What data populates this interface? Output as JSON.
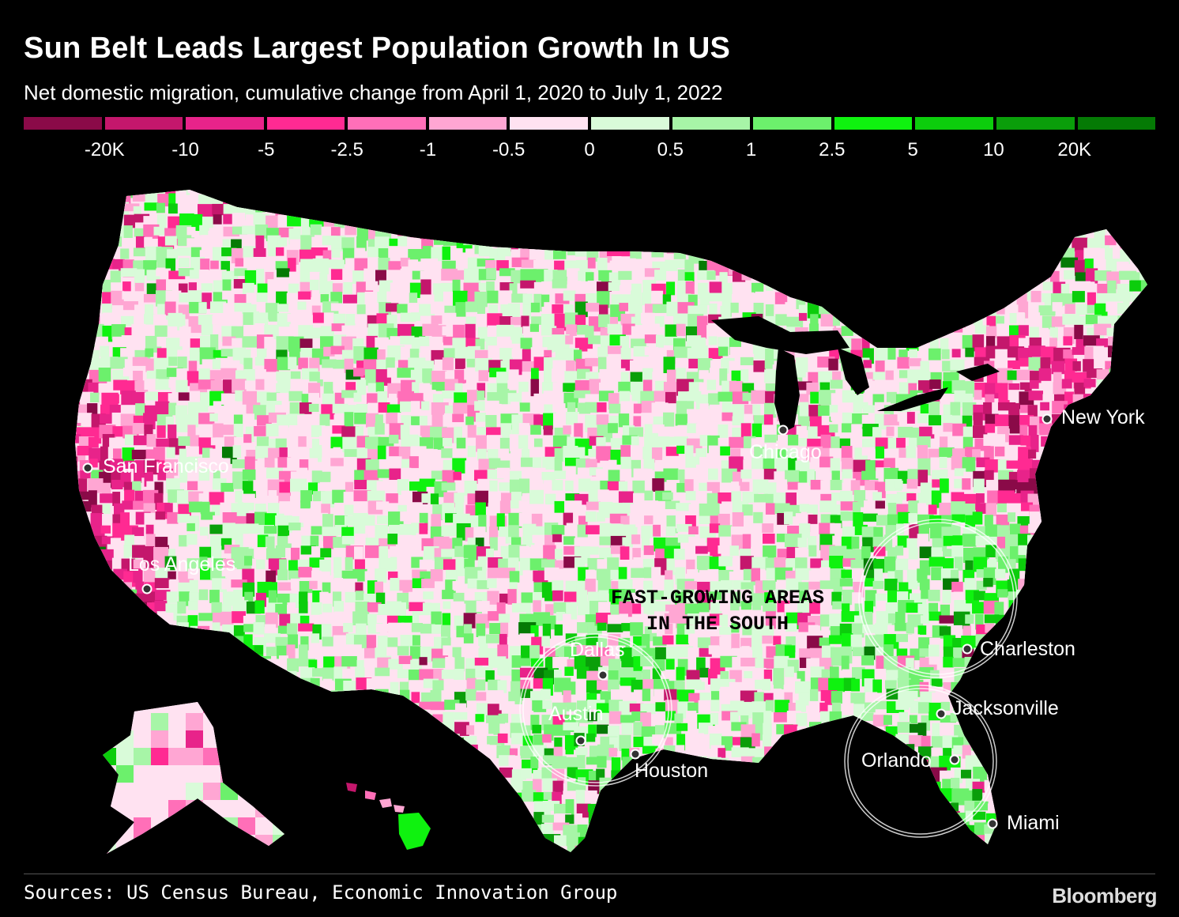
{
  "title": "Sun Belt Leads Largest Population Growth In US",
  "subtitle": "Net domestic migration, cumulative change from April 1, 2020 to July 1, 2022",
  "legend": {
    "colors": [
      "#8a0a48",
      "#c4176c",
      "#e8238a",
      "#ff2a92",
      "#ff6fb8",
      "#ffa6d3",
      "#ffe2f1",
      "#d9fbd9",
      "#a7f5a7",
      "#6cf06c",
      "#0ff20f",
      "#0ccd0c",
      "#0a9e0a",
      "#057a05"
    ],
    "labels": [
      "-20K",
      "-10",
      "-5",
      "-2.5",
      "-1",
      "-0.5",
      "0",
      "0.5",
      "1",
      "2.5",
      "5",
      "10",
      "20K"
    ]
  },
  "cities": {
    "sf": "San Francisco",
    "la": "Los Angeles",
    "chicago": "Chicago",
    "newyork": "New York",
    "dallas": "Dallas",
    "austin": "Austin",
    "houston": "Houston",
    "charleston": "Charleston",
    "jacksonville": "Jacksonville",
    "orlando": "Orlando",
    "miami": "Miami"
  },
  "annotation": {
    "line1": "FAST-GROWING AREAS",
    "line2": "IN THE SOUTH"
  },
  "source": "Sources: US Census Bureau, Economic Innovation Group",
  "brand": "Bloomberg"
}
